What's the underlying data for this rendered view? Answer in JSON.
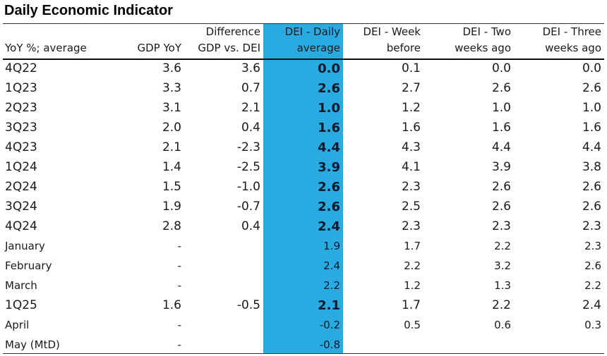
{
  "title": "Daily Economic Indicator",
  "columns": [
    {
      "line1": "",
      "line2": "YoY %; average"
    },
    {
      "line1": "",
      "line2": "GDP YoY"
    },
    {
      "line1": "Difference",
      "line2": "GDP vs. DEI"
    },
    {
      "line1": "DEI - Daily",
      "line2": "average"
    },
    {
      "line1": "DEI - Week",
      "line2": "before"
    },
    {
      "line1": "DEI - Two",
      "line2": "weeks ago"
    },
    {
      "line1": "DEI - Three",
      "line2": "weeks ago"
    }
  ],
  "rows": [
    {
      "type": "q",
      "cells": [
        "4Q22",
        "3.6",
        "3.6",
        "0.0",
        "0.1",
        "0.0",
        "0.0"
      ]
    },
    {
      "type": "q",
      "cells": [
        "1Q23",
        "3.3",
        "0.7",
        "2.6",
        "2.7",
        "2.6",
        "2.6"
      ]
    },
    {
      "type": "q",
      "cells": [
        "2Q23",
        "3.1",
        "2.1",
        "1.0",
        "1.2",
        "1.0",
        "1.0"
      ]
    },
    {
      "type": "q",
      "cells": [
        "3Q23",
        "2.0",
        "0.4",
        "1.6",
        "1.6",
        "1.6",
        "1.6"
      ]
    },
    {
      "type": "q",
      "cells": [
        "4Q23",
        "2.1",
        "-2.3",
        "4.4",
        "4.3",
        "4.4",
        "4.4"
      ]
    },
    {
      "type": "q",
      "cells": [
        "1Q24",
        "1.4",
        "-2.5",
        "3.9",
        "4.1",
        "3.9",
        "3.8"
      ]
    },
    {
      "type": "q",
      "cells": [
        "2Q24",
        "1.5",
        "-1.0",
        "2.6",
        "2.3",
        "2.6",
        "2.6"
      ]
    },
    {
      "type": "q",
      "cells": [
        "3Q24",
        "1.9",
        "-0.7",
        "2.6",
        "2.5",
        "2.6",
        "2.6"
      ]
    },
    {
      "type": "q",
      "cells": [
        "4Q24",
        "2.8",
        "0.4",
        "2.4",
        "2.3",
        "2.3",
        "2.3"
      ]
    },
    {
      "type": "m",
      "cells": [
        "January",
        "-",
        "",
        "1.9",
        "1.7",
        "2.2",
        "2.3"
      ]
    },
    {
      "type": "m",
      "cells": [
        "February",
        "-",
        "",
        "2.4",
        "2.2",
        "3.2",
        "2.6"
      ]
    },
    {
      "type": "m",
      "cells": [
        "March",
        "-",
        "",
        "2.2",
        "1.2",
        "1.3",
        "2.2"
      ]
    },
    {
      "type": "q",
      "cells": [
        "1Q25",
        "1.6",
        "-0.5",
        "2.1",
        "1.7",
        "2.2",
        "2.4"
      ]
    },
    {
      "type": "m",
      "cells": [
        "April",
        "-",
        "",
        "-0.2",
        "0.5",
        "0.6",
        "0.3"
      ]
    },
    {
      "type": "m",
      "cells": [
        "May (MtD)",
        "-",
        "",
        "-0.8",
        "",
        "",
        ""
      ]
    }
  ],
  "colors": {
    "highlight": "#29abe2"
  }
}
